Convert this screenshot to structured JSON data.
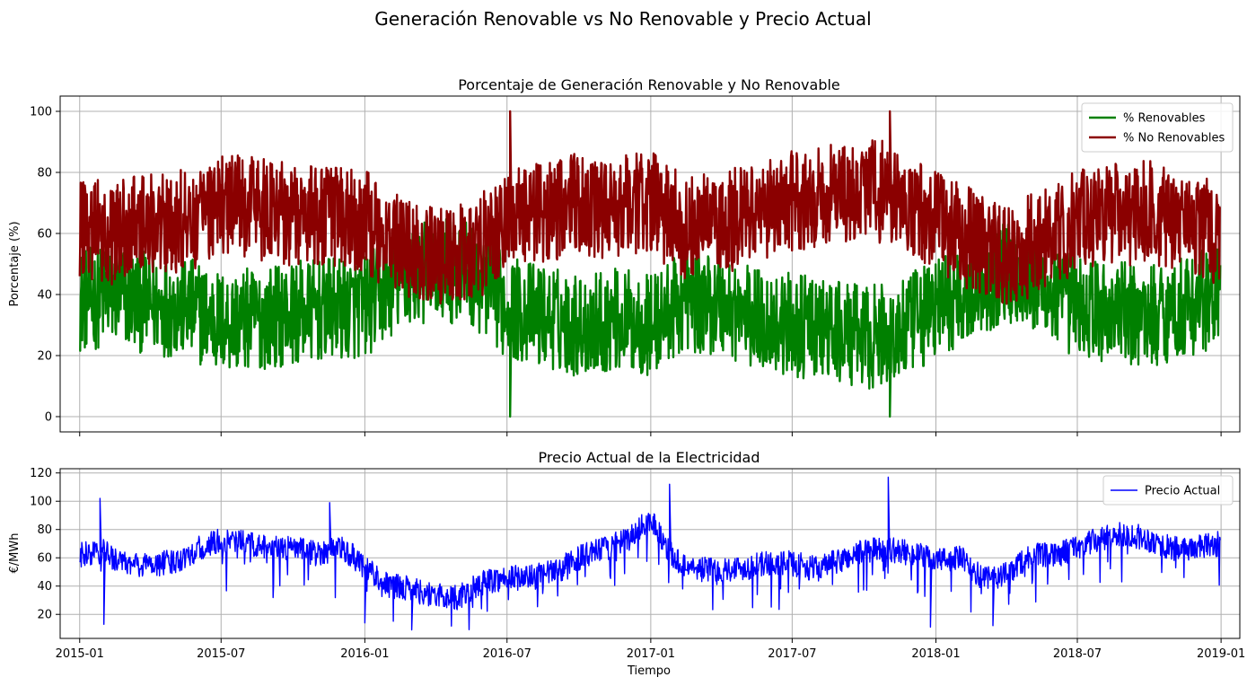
{
  "figure": {
    "title": "Generación Renovable vs No Renovable y Precio Actual"
  },
  "chart_data": [
    {
      "type": "line",
      "title": "Porcentaje de Generación Renovable y No Renovable",
      "xlabel": "",
      "ylabel": "Porcentaje (%)",
      "x_range": [
        "2014-12-07",
        "2019-01-25"
      ],
      "ylim": [
        -5,
        105
      ],
      "x_ticks": [
        "2015-01-01",
        "2015-07-01",
        "2016-01-01",
        "2016-07-01",
        "2017-01-01",
        "2017-07-01",
        "2018-01-01",
        "2018-07-01",
        "2019-01-01"
      ],
      "x_tick_labels": [
        "",
        "",
        "",
        "",
        "",
        "",
        "",
        "",
        ""
      ],
      "y_ticks": [
        0,
        20,
        40,
        60,
        80,
        100
      ],
      "y_tick_labels": [
        "0",
        "20",
        "40",
        "60",
        "80",
        "100"
      ],
      "grid": true,
      "legend_position": "top-right",
      "series": [
        {
          "name": "% Renovables",
          "color": "#008000",
          "points": [
            [
              "2015-01-01",
              38
            ],
            [
              "2015-02-15",
              40
            ],
            [
              "2015-04-01",
              37
            ],
            [
              "2015-05-15",
              36
            ],
            [
              "2015-07-01",
              31
            ],
            [
              "2015-08-15",
              32
            ],
            [
              "2015-10-01",
              34
            ],
            [
              "2015-11-15",
              35
            ],
            [
              "2016-01-01",
              36
            ],
            [
              "2016-02-15",
              45
            ],
            [
              "2016-04-01",
              48
            ],
            [
              "2016-05-15",
              47
            ],
            [
              "2016-07-01",
              36
            ],
            [
              "2016-08-15",
              33
            ],
            [
              "2016-10-01",
              30
            ],
            [
              "2016-11-15",
              32
            ],
            [
              "2017-01-01",
              30
            ],
            [
              "2017-02-15",
              38
            ],
            [
              "2017-04-01",
              37
            ],
            [
              "2017-05-15",
              32
            ],
            [
              "2017-07-01",
              30
            ],
            [
              "2017-08-15",
              28
            ],
            [
              "2017-10-01",
              26
            ],
            [
              "2017-11-15",
              27
            ],
            [
              "2018-01-01",
              36
            ],
            [
              "2018-02-15",
              42
            ],
            [
              "2018-04-01",
              48
            ],
            [
              "2018-05-15",
              42
            ],
            [
              "2018-07-01",
              36
            ],
            [
              "2018-08-15",
              34
            ],
            [
              "2018-10-01",
              33
            ],
            [
              "2018-11-15",
              36
            ],
            [
              "2018-12-31",
              40
            ]
          ],
          "min_events": [
            [
              "2016-07-05",
              0
            ],
            [
              "2017-11-03",
              0
            ]
          ]
        },
        {
          "name": "% No Renovables",
          "color": "#8b0000",
          "points": [
            [
              "2015-01-01",
              62
            ],
            [
              "2015-02-15",
              60
            ],
            [
              "2015-04-01",
              63
            ],
            [
              "2015-05-15",
              64
            ],
            [
              "2015-07-01",
              69
            ],
            [
              "2015-08-15",
              68
            ],
            [
              "2015-10-01",
              66
            ],
            [
              "2015-11-15",
              65
            ],
            [
              "2016-01-01",
              64
            ],
            [
              "2016-02-15",
              55
            ],
            [
              "2016-04-01",
              52
            ],
            [
              "2016-05-15",
              53
            ],
            [
              "2016-07-01",
              64
            ],
            [
              "2016-08-15",
              67
            ],
            [
              "2016-10-01",
              70
            ],
            [
              "2016-11-15",
              68
            ],
            [
              "2017-01-01",
              70
            ],
            [
              "2017-02-15",
              62
            ],
            [
              "2017-04-01",
              63
            ],
            [
              "2017-05-15",
              68
            ],
            [
              "2017-07-01",
              70
            ],
            [
              "2017-08-15",
              72
            ],
            [
              "2017-10-01",
              74
            ],
            [
              "2017-11-15",
              73
            ],
            [
              "2018-01-01",
              64
            ],
            [
              "2018-02-15",
              58
            ],
            [
              "2018-04-01",
              52
            ],
            [
              "2018-05-15",
              58
            ],
            [
              "2018-07-01",
              64
            ],
            [
              "2018-08-15",
              66
            ],
            [
              "2018-10-01",
              67
            ],
            [
              "2018-11-15",
              64
            ],
            [
              "2018-12-31",
              60
            ]
          ],
          "max_events": [
            [
              "2016-07-05",
              100
            ],
            [
              "2017-11-03",
              100
            ]
          ]
        }
      ]
    },
    {
      "type": "line",
      "title": "Precio Actual de la Electricidad",
      "xlabel": "Tiempo",
      "ylabel": "€/MWh",
      "x_range": [
        "2014-12-07",
        "2019-01-25"
      ],
      "ylim": [
        3,
        123
      ],
      "x_ticks": [
        "2015-01-01",
        "2015-07-01",
        "2016-01-01",
        "2016-07-01",
        "2017-01-01",
        "2017-07-01",
        "2018-01-01",
        "2018-07-01",
        "2019-01-01"
      ],
      "x_tick_labels": [
        "2015-01",
        "2015-07",
        "2016-01",
        "2016-07",
        "2017-01",
        "2017-07",
        "2018-01",
        "2018-07",
        "2019-01"
      ],
      "y_ticks": [
        20,
        40,
        60,
        80,
        100,
        120
      ],
      "y_tick_labels": [
        "20",
        "40",
        "60",
        "80",
        "100",
        "120"
      ],
      "grid": true,
      "legend_position": "top-right",
      "series": [
        {
          "name": "Precio Actual",
          "color": "#0000ff",
          "points": [
            [
              "2015-01-01",
              62
            ],
            [
              "2015-02-01",
              64
            ],
            [
              "2015-03-01",
              55
            ],
            [
              "2015-04-01",
              55
            ],
            [
              "2015-05-01",
              57
            ],
            [
              "2015-06-01",
              66
            ],
            [
              "2015-07-01",
              72
            ],
            [
              "2015-08-01",
              71
            ],
            [
              "2015-09-01",
              66
            ],
            [
              "2015-10-01",
              67
            ],
            [
              "2015-11-01",
              63
            ],
            [
              "2015-12-01",
              68
            ],
            [
              "2016-01-01",
              54
            ],
            [
              "2016-02-01",
              40
            ],
            [
              "2016-03-01",
              38
            ],
            [
              "2016-04-01",
              33
            ],
            [
              "2016-05-01",
              32
            ],
            [
              "2016-06-01",
              43
            ],
            [
              "2016-07-01",
              46
            ],
            [
              "2016-08-01",
              46
            ],
            [
              "2016-09-01",
              50
            ],
            [
              "2016-10-01",
              60
            ],
            [
              "2016-11-01",
              66
            ],
            [
              "2016-12-01",
              72
            ],
            [
              "2017-01-01",
              88
            ],
            [
              "2017-02-01",
              58
            ],
            [
              "2017-03-01",
              52
            ],
            [
              "2017-04-01",
              52
            ],
            [
              "2017-05-01",
              53
            ],
            [
              "2017-06-01",
              56
            ],
            [
              "2017-07-01",
              56
            ],
            [
              "2017-08-01",
              52
            ],
            [
              "2017-09-01",
              58
            ],
            [
              "2017-10-01",
              65
            ],
            [
              "2017-11-01",
              66
            ],
            [
              "2017-12-01",
              63
            ],
            [
              "2018-01-01",
              58
            ],
            [
              "2018-02-01",
              60
            ],
            [
              "2018-03-01",
              45
            ],
            [
              "2018-04-01",
              48
            ],
            [
              "2018-05-01",
              62
            ],
            [
              "2018-06-01",
              61
            ],
            [
              "2018-07-01",
              68
            ],
            [
              "2018-08-01",
              73
            ],
            [
              "2018-09-01",
              77
            ],
            [
              "2018-10-01",
              73
            ],
            [
              "2018-11-01",
              66
            ],
            [
              "2018-12-01",
              67
            ],
            [
              "2018-12-31",
              70
            ]
          ],
          "spike_events": [
            [
              "2015-01-27",
              102
            ],
            [
              "2015-11-17",
              99
            ],
            [
              "2017-01-25",
              112
            ],
            [
              "2017-11-01",
              117
            ]
          ],
          "dip_events": [
            [
              "2015-02-01",
              13
            ],
            [
              "2016-01-01",
              14
            ],
            [
              "2016-03-01",
              9
            ],
            [
              "2017-12-25",
              11
            ],
            [
              "2018-03-15",
              12
            ]
          ]
        }
      ]
    }
  ]
}
